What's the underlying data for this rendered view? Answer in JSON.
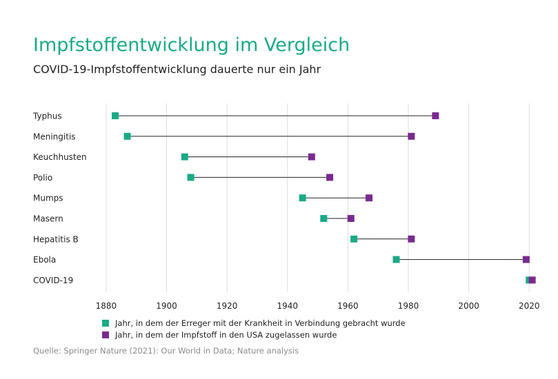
{
  "header": {
    "title": "Impfstoffentwicklung im Vergleich",
    "subtitle": "COVID-19-Impfstoffentwicklung dauerte nur ein Jahr"
  },
  "footer": {
    "source": "Quelle: Springer Nature (2021): Our World in Data; Nature analysis"
  },
  "colors": {
    "discovery": "#1aaa86",
    "approval": "#7a2a8f",
    "line": "#222222",
    "grid": "#dddddd"
  },
  "chart_data": {
    "type": "dumbbell",
    "xlim": [
      1875,
      2022
    ],
    "x_ticks": [
      1880,
      1900,
      1920,
      1940,
      1960,
      1980,
      2000,
      2020
    ],
    "categories": [
      "Typhus",
      "Meningitis",
      "Keuchhusten",
      "Polio",
      "Mumps",
      "Masern",
      "Hepatitis B",
      "Ebola",
      "COVID-19"
    ],
    "series": [
      {
        "name": "Jahr, in dem der Erreger mit der Krankheit in Verbindung gebracht wurde",
        "values": [
          1883,
          1887,
          1906,
          1908,
          1945,
          1952,
          1962,
          1976,
          2020
        ]
      },
      {
        "name": "Jahr, in dem der Impfstoff in den USA zugelassen wurde",
        "values": [
          1989,
          1981,
          1948,
          1954,
          1967,
          1961,
          1981,
          2019,
          2021
        ]
      }
    ],
    "grid": true,
    "legend_position": "bottom-left"
  }
}
